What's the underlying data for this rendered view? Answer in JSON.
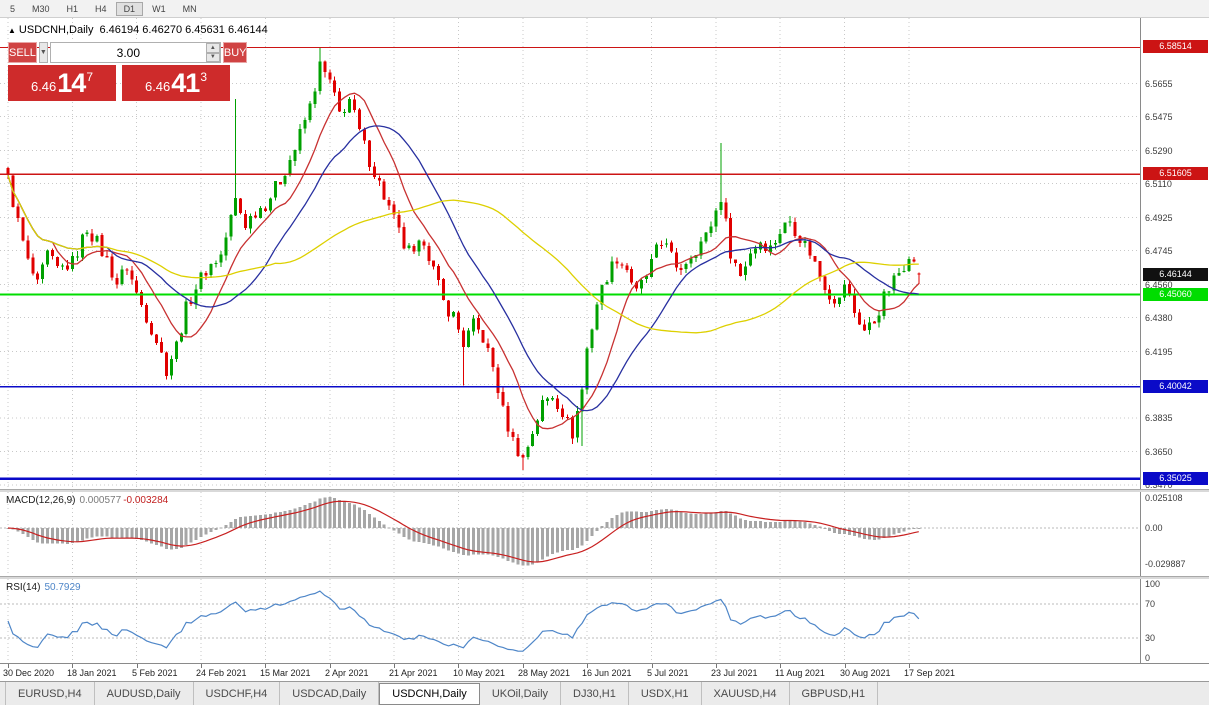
{
  "toolbar": {
    "items": [
      "5",
      "M30",
      "H1",
      "H4",
      "D1",
      "W1",
      "MN"
    ],
    "active": "D1"
  },
  "chart": {
    "collapse": "▲",
    "symbol": "USDCNH,Daily",
    "ohlc": "6.46194 6.46270 6.45631 6.46144"
  },
  "one_click": {
    "sell_label": "SELL",
    "buy_label": "BUY",
    "volume": "3.00",
    "dropdown_icon": "▼",
    "spin_up": "▲",
    "spin_down": "▼",
    "bid": {
      "big": "6.46",
      "pips": "14",
      "point": "7"
    },
    "ask": {
      "big": "6.46",
      "pips": "41",
      "point": "3"
    }
  },
  "chart_data": {
    "type": "candlestick",
    "symbol": "USDCNH",
    "timeframe": "Daily",
    "ohlc_current": {
      "open": 6.46194,
      "high": 6.4627,
      "low": 6.45631,
      "close": 6.46144
    },
    "current": {
      "value": 6.46144,
      "label": "6.46144"
    },
    "price_axis": {
      "min": 6.3447,
      "max": 6.6012,
      "grid_labels": [
        "6.5655",
        "6.5475",
        "6.5290",
        "6.5110",
        "6.4925",
        "6.4745",
        "6.4560",
        "6.4380",
        "6.4195",
        "6.4015",
        "6.3835",
        "6.3650",
        "6.3470"
      ]
    },
    "levels": [
      {
        "value": 6.58514,
        "label": "6.58514",
        "color": "#cc1414",
        "width": 1.4
      },
      {
        "value": 6.51605,
        "label": "6.51605",
        "color": "#cc1414",
        "width": 1.4
      },
      {
        "value": 6.4506,
        "label": "6.45060",
        "color": "#00dd00",
        "width": 2.2
      },
      {
        "value": 6.40042,
        "label": "6.40042",
        "color": "#0a0ac8",
        "width": 1.8
      },
      {
        "value": 6.35025,
        "label": "6.35025",
        "color": "#0a0ac8",
        "width": 2.6
      }
    ],
    "dates": [
      "30 Dec 2020",
      "18 Jan 2021",
      "5 Feb 2021",
      "24 Feb 2021",
      "15 Mar 2021",
      "2 Apr 2021",
      "21 Apr 2021",
      "10 May 2021",
      "28 May 2021",
      "16 Jun 2021",
      "5 Jul 2021",
      "23 Jul 2021",
      "11 Aug 2021",
      "30 Aug 2021",
      "17 Sep 2021"
    ],
    "candles": {
      "count": 185,
      "per_label": 13,
      "noise": 0.004,
      "anchors": [
        [
          0,
          6.513
        ],
        [
          2,
          6.49
        ],
        [
          4,
          6.468
        ],
        [
          6,
          6.455
        ],
        [
          8,
          6.472
        ],
        [
          10,
          6.464
        ],
        [
          13,
          6.468
        ],
        [
          16,
          6.487
        ],
        [
          18,
          6.479
        ],
        [
          20,
          6.469
        ],
        [
          22,
          6.457
        ],
        [
          24,
          6.466
        ],
        [
          26,
          6.451
        ],
        [
          28,
          6.439
        ],
        [
          30,
          6.426
        ],
        [
          32,
          6.41
        ],
        [
          34,
          6.423
        ],
        [
          36,
          6.443
        ],
        [
          38,
          6.455
        ],
        [
          40,
          6.464
        ],
        [
          43,
          6.472
        ],
        [
          46,
          6.502
        ],
        [
          48,
          6.489
        ],
        [
          50,
          6.496
        ],
        [
          52,
          6.5
        ],
        [
          55,
          6.513
        ],
        [
          58,
          6.53
        ],
        [
          61,
          6.553
        ],
        [
          63,
          6.575
        ],
        [
          65,
          6.566
        ],
        [
          67,
          6.549
        ],
        [
          69,
          6.557
        ],
        [
          71,
          6.539
        ],
        [
          73,
          6.524
        ],
        [
          75,
          6.511
        ],
        [
          78,
          6.491
        ],
        [
          80,
          6.477
        ],
        [
          82,
          6.471
        ],
        [
          84,
          6.481
        ],
        [
          86,
          6.464
        ],
        [
          88,
          6.446
        ],
        [
          90,
          6.439
        ],
        [
          92,
          6.424
        ],
        [
          94,
          6.434
        ],
        [
          96,
          6.427
        ],
        [
          98,
          6.411
        ],
        [
          100,
          6.387
        ],
        [
          102,
          6.371
        ],
        [
          104,
          6.361
        ],
        [
          106,
          6.376
        ],
        [
          108,
          6.391
        ],
        [
          110,
          6.396
        ],
        [
          112,
          6.387
        ],
        [
          114,
          6.375
        ],
        [
          116,
          6.399
        ],
        [
          117,
          6.421
        ],
        [
          119,
          6.446
        ],
        [
          121,
          6.461
        ],
        [
          123,
          6.471
        ],
        [
          125,
          6.465
        ],
        [
          127,
          6.451
        ],
        [
          129,
          6.461
        ],
        [
          131,
          6.474
        ],
        [
          133,
          6.481
        ],
        [
          135,
          6.462
        ],
        [
          137,
          6.469
        ],
        [
          139,
          6.476
        ],
        [
          141,
          6.482
        ],
        [
          143,
          6.496
        ],
        [
          144,
          6.504
        ],
        [
          146,
          6.474
        ],
        [
          148,
          6.461
        ],
        [
          150,
          6.474
        ],
        [
          152,
          6.48
        ],
        [
          154,
          6.476
        ],
        [
          156,
          6.485
        ],
        [
          158,
          6.491
        ],
        [
          160,
          6.482
        ],
        [
          162,
          6.474
        ],
        [
          164,
          6.461
        ],
        [
          166,
          6.451
        ],
        [
          168,
          6.447
        ],
        [
          169,
          6.457
        ],
        [
          171,
          6.441
        ],
        [
          173,
          6.431
        ],
        [
          175,
          6.436
        ],
        [
          177,
          6.449
        ],
        [
          179,
          6.458
        ],
        [
          181,
          6.467
        ],
        [
          182,
          6.474
        ],
        [
          183,
          6.467
        ],
        [
          184,
          6.46144
        ]
      ],
      "overrides": [
        {
          "i": 32,
          "l": 6.4042
        },
        {
          "i": 46,
          "h": 6.557
        },
        {
          "i": 63,
          "h": 6.5851
        },
        {
          "i": 64,
          "h": 6.578
        },
        {
          "i": 92,
          "l": 6.401
        },
        {
          "i": 104,
          "l": 6.3551
        },
        {
          "i": 116,
          "l": 6.368
        },
        {
          "i": 144,
          "h": 6.533
        },
        {
          "i": 184,
          "o": 6.46194,
          "h": 6.4627,
          "l": 6.45631,
          "c": 6.46144
        }
      ]
    },
    "moving_averages": [
      {
        "period": 10,
        "color": "#c83232"
      },
      {
        "period": 21,
        "color": "#2830a0"
      },
      {
        "period": 55,
        "color": "#ddd000"
      }
    ],
    "macd": {
      "label": "MACD(12,26,9)",
      "value": "0.000577",
      "signal_value": "-0.003284",
      "fast": 12,
      "slow": 26,
      "signal": 9,
      "range": [
        -0.04,
        0.03
      ],
      "axis": [
        {
          "text": "0.025108",
          "value": 0.025108
        },
        {
          "text": "0.00",
          "value": 0
        },
        {
          "text": "-0.029887",
          "value": -0.029887
        }
      ]
    },
    "rsi": {
      "label": "RSI(14)",
      "value": "50.7929",
      "period": 14,
      "levels": [
        70,
        30
      ],
      "range": [
        0,
        100
      ],
      "axis": [
        {
          "text": "100",
          "value": 100
        },
        {
          "text": "70",
          "value": 70
        },
        {
          "text": "30",
          "value": 30
        },
        {
          "text": "0",
          "value": 0
        }
      ]
    }
  },
  "tabs": {
    "items": [
      "EURUSD,H4",
      "AUDUSD,Daily",
      "USDCHF,H4",
      "USDCAD,Daily",
      "USDCNH,Daily",
      "UKOil,Daily",
      "DJ30,H1",
      "USDX,H1",
      "XAUUSD,H4",
      "GBPUSD,H1"
    ],
    "active_index": 4
  },
  "colors": {
    "up": "#00a000",
    "down": "#e00000",
    "grid": "#c8c8c8",
    "macd_hist": "#a6a6a6",
    "macd_signal": "#c82020",
    "rsi_line": "#4e86c8",
    "current_badge": "#111111"
  }
}
